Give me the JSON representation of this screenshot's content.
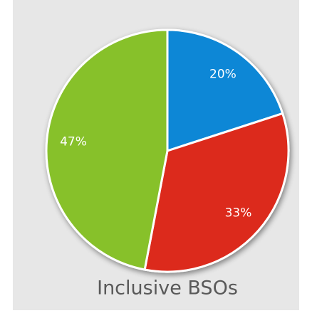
{
  "chart_data": {
    "type": "pie",
    "title": "Inclusive BSOs",
    "values": [
      20,
      33,
      47
    ],
    "value_labels": [
      "20%",
      "33%",
      "47%"
    ],
    "colors": [
      "#0a87d6",
      "#dc2b1e",
      "#87c12c"
    ]
  }
}
